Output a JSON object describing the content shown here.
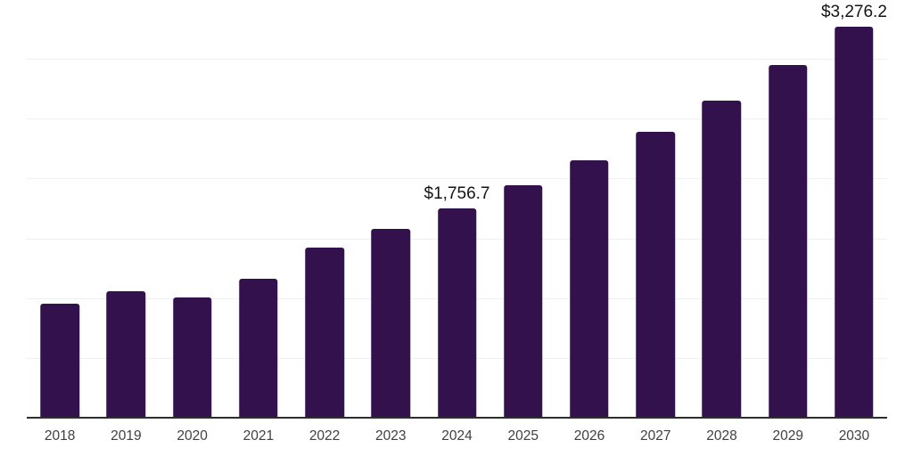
{
  "chart_data": {
    "type": "bar",
    "title": "",
    "xlabel": "",
    "ylabel": "",
    "categories": [
      "2018",
      "2019",
      "2020",
      "2021",
      "2022",
      "2023",
      "2024",
      "2025",
      "2026",
      "2027",
      "2028",
      "2029",
      "2030"
    ],
    "values": [
      958,
      1065,
      1015,
      1172,
      1433,
      1583,
      1756.7,
      1949,
      2163,
      2400,
      2662,
      2954,
      3276.2
    ],
    "data_labels": [
      null,
      null,
      null,
      null,
      null,
      null,
      "$1,756.7",
      null,
      null,
      null,
      null,
      null,
      "$3,276.2"
    ],
    "ylim": [
      0,
      3500
    ],
    "gridline_step": 500,
    "grid": true,
    "legend": false,
    "y_axis_labels_visible": false
  },
  "colors": {
    "background": "#ffffff",
    "bar": "#33114C",
    "axis_line": "#2e2e2e",
    "gridline": "#f0f0f0",
    "tick_label": "#404040",
    "data_label": "#141414"
  }
}
